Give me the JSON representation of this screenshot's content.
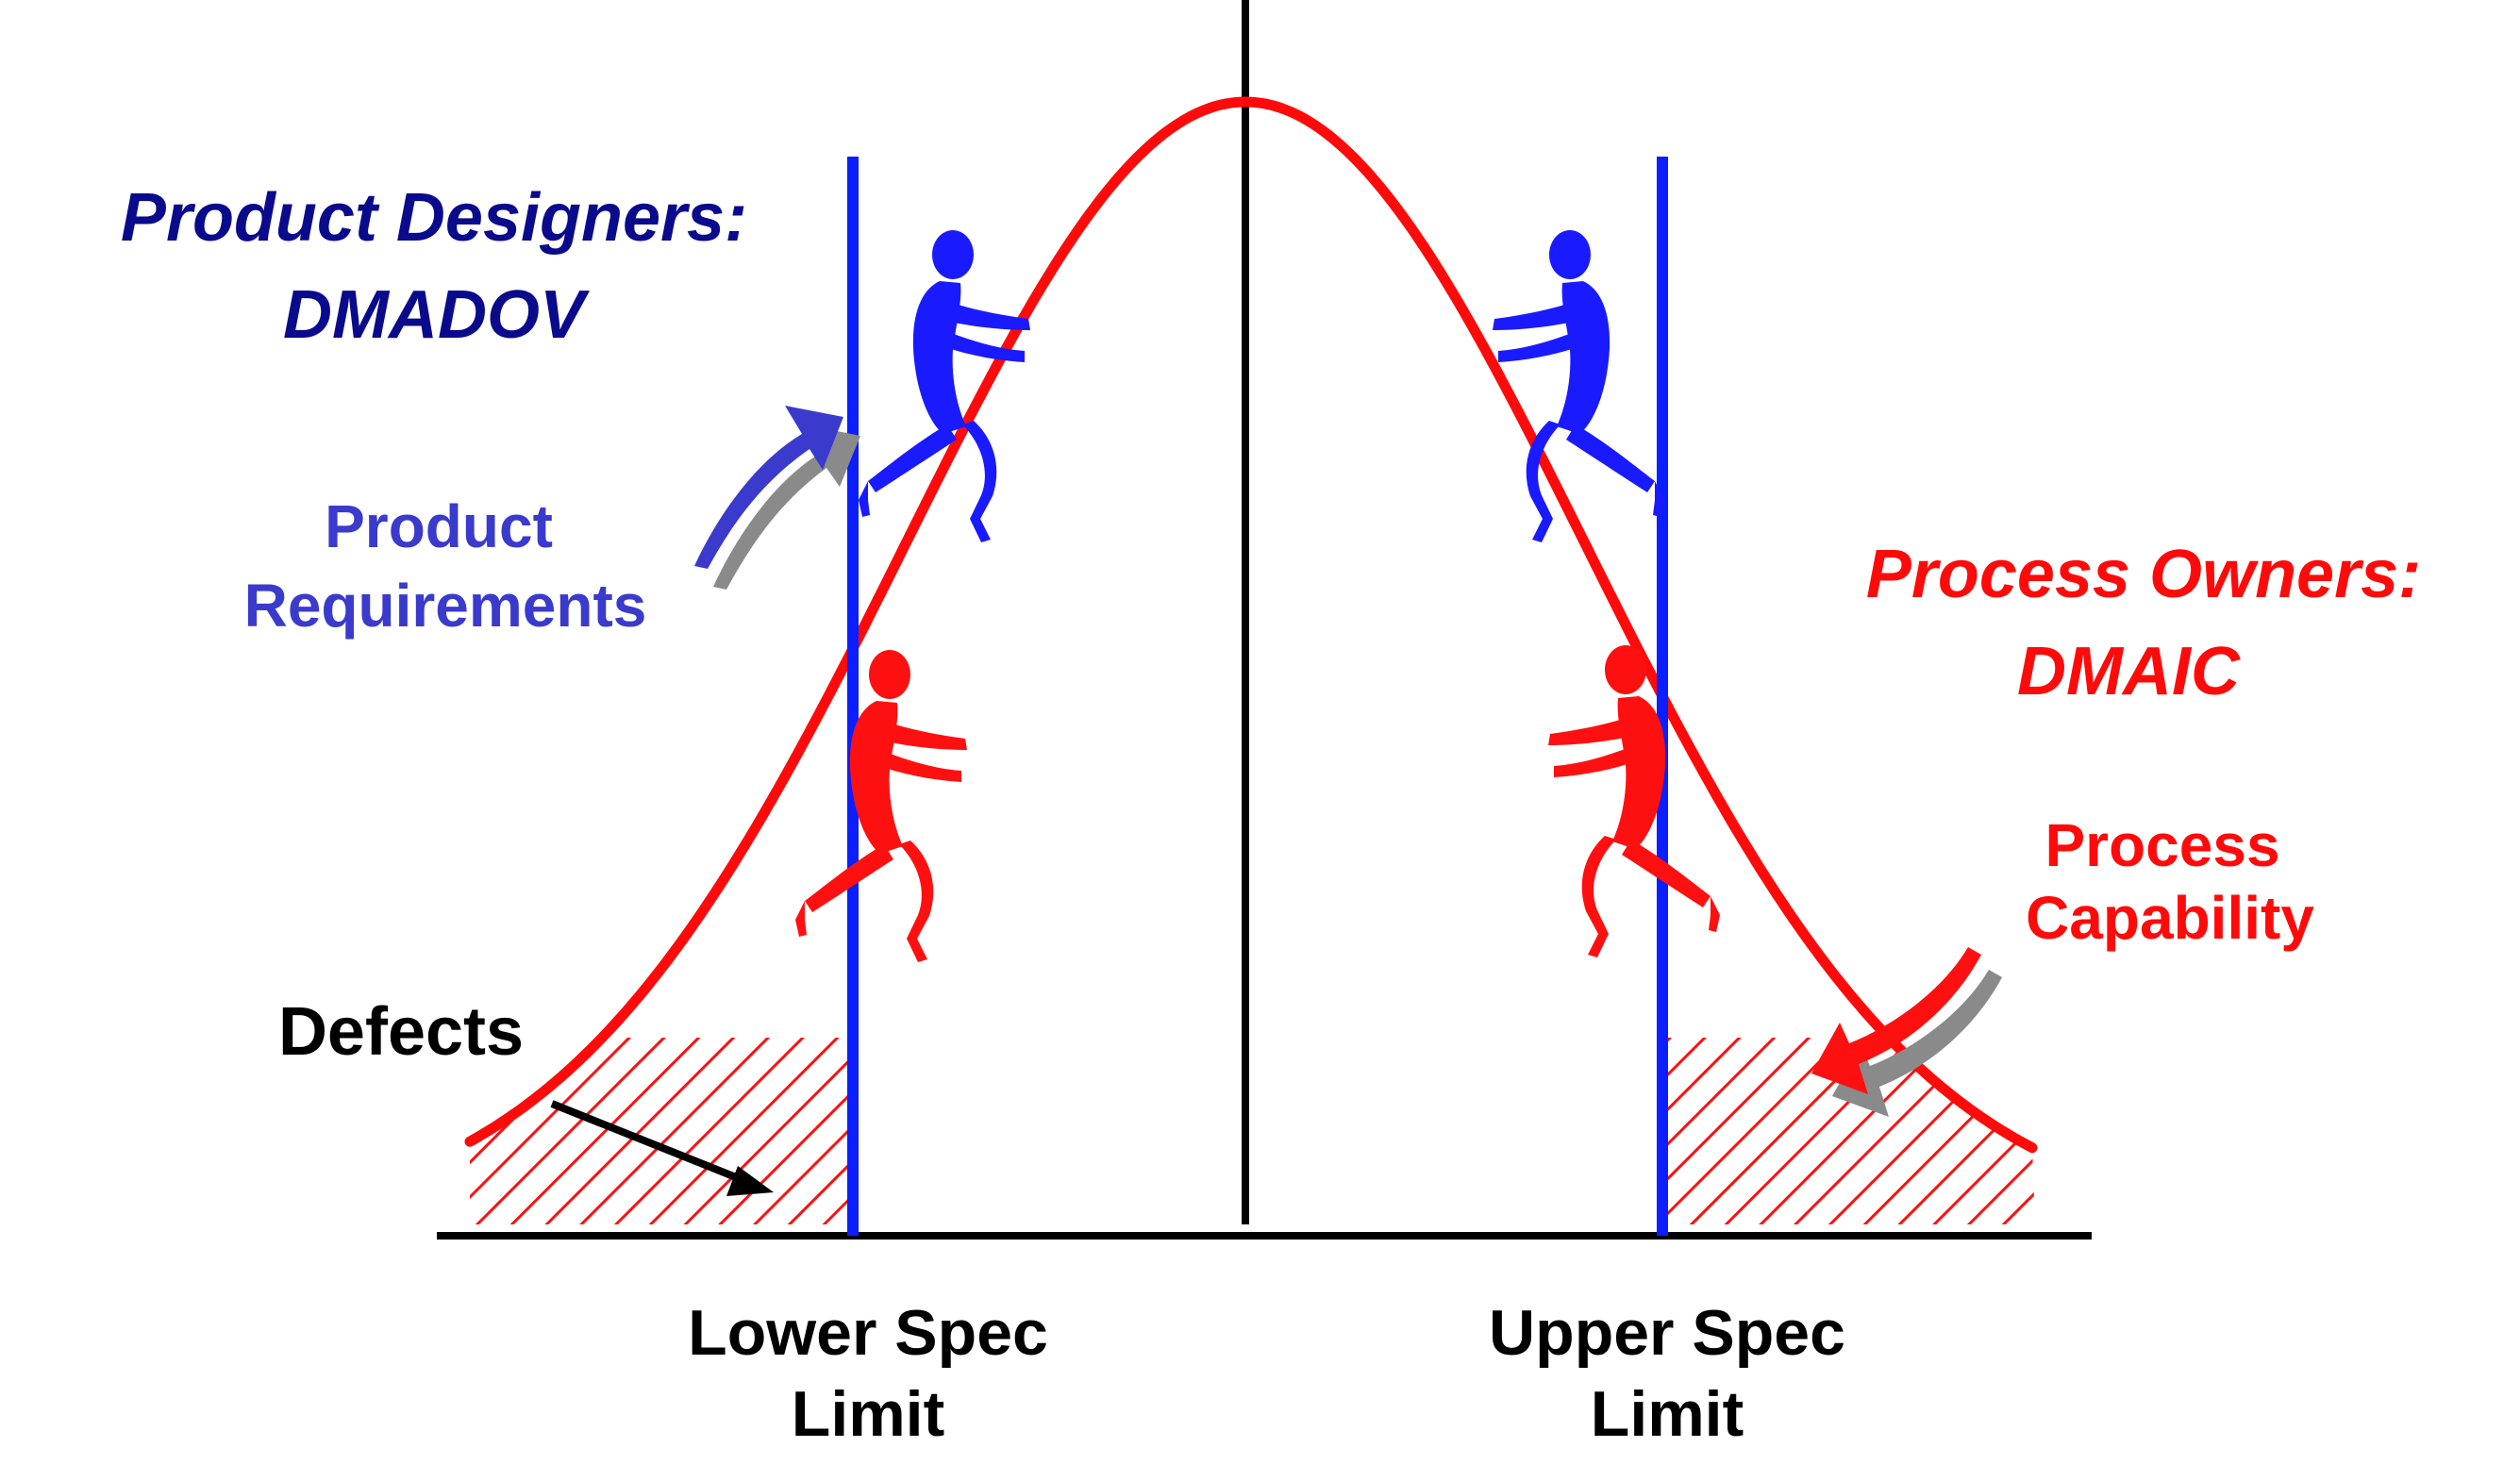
{
  "labels": {
    "designers_title": "Product Designers:",
    "designers_method": "DMADOV",
    "product_req_line1": "Product",
    "product_req_line2": "Requirements",
    "owners_title": "Process Owners:",
    "owners_method": "DMAIC",
    "process_cap_line1": "Process",
    "process_cap_line2": "Capability",
    "defects": "Defects",
    "lsl_line1": "Lower Spec",
    "lsl_line2": "Limit",
    "usl_line1": "Upper Spec",
    "usl_line2": "Limit"
  },
  "colors": {
    "designers": "#0a0a8c",
    "requirements": "#3a3acc",
    "spec_limit": "#0a1eff",
    "curve": "#ff0a0a",
    "owners": "#ff0a0a",
    "figure_blue": "#1a1aff",
    "figure_red": "#ff1010",
    "axis": "#000000",
    "arrow_shadow": "#8a8a8a"
  },
  "icons": [
    "climbing-person-icon",
    "curved-arrow-icon"
  ]
}
